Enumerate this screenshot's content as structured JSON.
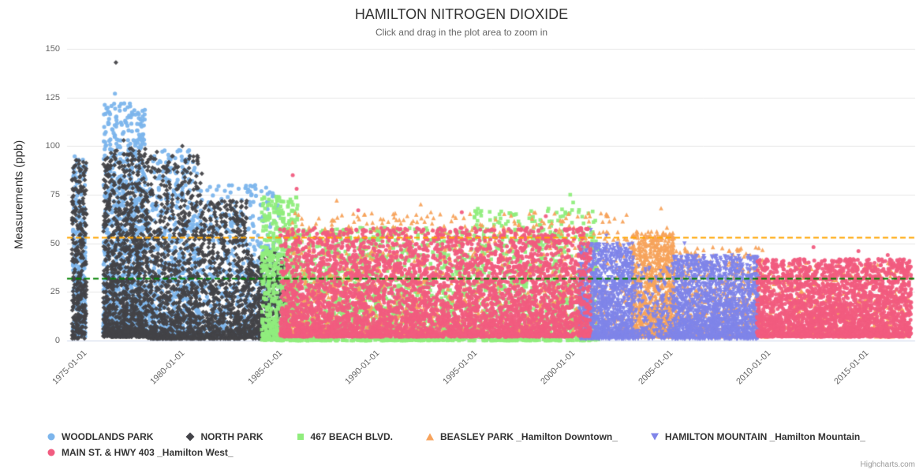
{
  "chart": {
    "title": "HAMILTON NITROGEN DIOXIDE",
    "subtitle": "Click and drag in the plot area to zoom in",
    "credit": "Highcharts.com"
  },
  "chart_data": {
    "type": "scatter",
    "title": "HAMILTON NITROGEN DIOXIDE",
    "subtitle": "Click and drag in the plot area to zoom in",
    "xlabel": "",
    "ylabel": "Measurements (ppb)",
    "grid": "horizontal-only",
    "legend_position": "bottom",
    "x_axis": {
      "type": "datetime",
      "range_years": [
        1974.4,
        2017.8
      ],
      "tick_years": [
        1975,
        1980,
        1985,
        1990,
        1995,
        2000,
        2005,
        2010,
        2015
      ],
      "tick_labels": [
        "1975-01-01",
        "1980-01-01",
        "1985-01-01",
        "1990-01-01",
        "1995-01-01",
        "2000-01-01",
        "2005-01-01",
        "2010-01-01",
        "2015-01-01"
      ]
    },
    "y_axis": {
      "range": [
        0,
        150
      ],
      "ticks": [
        0,
        25,
        50,
        75,
        100,
        125,
        150
      ]
    },
    "plot_lines": [
      {
        "value": 53,
        "color": "#ffa500",
        "style": "dashed",
        "width": 2
      },
      {
        "value": 32,
        "color": "#008000",
        "style": "dashed",
        "width": 2
      }
    ],
    "grid_color": "#e6e6e6",
    "axis_line_color": "#ccd6eb",
    "series": [
      {
        "name": "WOODLANDS PARK",
        "color": "#7cb5ec",
        "marker": "circle",
        "radius": 2.6,
        "bands": [
          [
            1974.7,
            1975.35,
            240,
            2,
            95,
            1.5
          ],
          [
            1976.25,
            1978.4,
            950,
            4,
            122,
            2.2
          ],
          [
            1978.4,
            1981.2,
            650,
            3,
            98,
            2.0
          ],
          [
            1981.2,
            1985.3,
            550,
            2,
            80,
            1.9
          ]
        ],
        "outliers": [
          [
            1976.85,
            127
          ],
          [
            1977.5,
            120
          ],
          [
            1976.55,
            114
          ],
          [
            1978.0,
            108
          ],
          [
            1977.2,
            111
          ]
        ]
      },
      {
        "name": "NORTH PARK",
        "color": "#434348",
        "marker": "diamond",
        "radius": 2.4,
        "bands": [
          [
            1974.65,
            1975.4,
            320,
            1,
            93,
            1.4
          ],
          [
            1976.25,
            1978.5,
            1100,
            2,
            100,
            2.2
          ],
          [
            1978.5,
            1981.3,
            900,
            1,
            96,
            2.2
          ],
          [
            1981.3,
            1983.6,
            650,
            1,
            72,
            1.9
          ],
          [
            1983.6,
            1985.6,
            520,
            1,
            46,
            1.6
          ]
        ],
        "outliers": [
          [
            1976.9,
            143
          ],
          [
            1980.3,
            100
          ],
          [
            1979.0,
            97
          ],
          [
            1977.3,
            103
          ]
        ]
      },
      {
        "name": "467 BEACH BLVD.",
        "color": "#90ed7d",
        "marker": "square",
        "radius": 2.3,
        "bands": [
          [
            1984.35,
            1986.2,
            650,
            0,
            74,
            1.6
          ],
          [
            1986.2,
            1995.0,
            1400,
            0,
            58,
            2.0
          ],
          [
            1995.0,
            2001.6,
            950,
            0,
            68,
            2.1
          ]
        ],
        "outliers": [
          [
            2000.15,
            75
          ],
          [
            2000.3,
            71
          ],
          [
            1999.9,
            66
          ],
          [
            1985.1,
            74
          ]
        ]
      },
      {
        "name": "BEASLEY PARK _Hamilton Downtown_",
        "color": "#f7a35c",
        "marker": "triangle",
        "radius": 2.5,
        "bands": [
          [
            1985.6,
            2003.3,
            1300,
            3,
            66,
            2.0
          ],
          [
            2003.3,
            2005.5,
            950,
            2,
            56,
            1.5
          ],
          [
            2005.5,
            2010.0,
            500,
            2,
            48,
            1.8
          ],
          [
            2010.0,
            2017.5,
            450,
            2,
            40,
            1.8
          ]
        ],
        "outliers": [
          [
            2004.8,
            68
          ],
          [
            1988.2,
            72
          ],
          [
            1992.5,
            70
          ],
          [
            2005.1,
            58
          ],
          [
            2008.3,
            46
          ]
        ]
      },
      {
        "name": "HAMILTON MOUNTAIN _Hamilton Mountain_",
        "color": "#8085e9",
        "marker": "triangle-down",
        "radius": 2.4,
        "bands": [
          [
            2000.6,
            2003.4,
            1250,
            1,
            50,
            1.6
          ],
          [
            2003.4,
            2005.4,
            220,
            1,
            40,
            1.8
          ],
          [
            2005.4,
            2009.8,
            1700,
            1,
            44,
            1.6
          ]
        ],
        "outliers": [
          [
            2001.2,
            57
          ],
          [
            2002.0,
            54
          ],
          [
            2006.0,
            50
          ]
        ]
      },
      {
        "name": "MAIN ST. & HWY 403 _Hamilton West_",
        "color": "#f15c80",
        "marker": "circle",
        "radius": 2.5,
        "bands": [
          [
            1985.3,
            2001.2,
            4200,
            2,
            58,
            1.8
          ],
          [
            2009.7,
            2017.6,
            2400,
            2,
            42,
            1.7
          ]
        ],
        "outliers": [
          [
            1985.95,
            85
          ],
          [
            1986.15,
            78
          ],
          [
            1989.3,
            67
          ],
          [
            1994.6,
            66
          ],
          [
            1998.9,
            64
          ],
          [
            2012.6,
            48
          ],
          [
            2014.9,
            46
          ],
          [
            2016.4,
            44
          ]
        ]
      }
    ]
  }
}
